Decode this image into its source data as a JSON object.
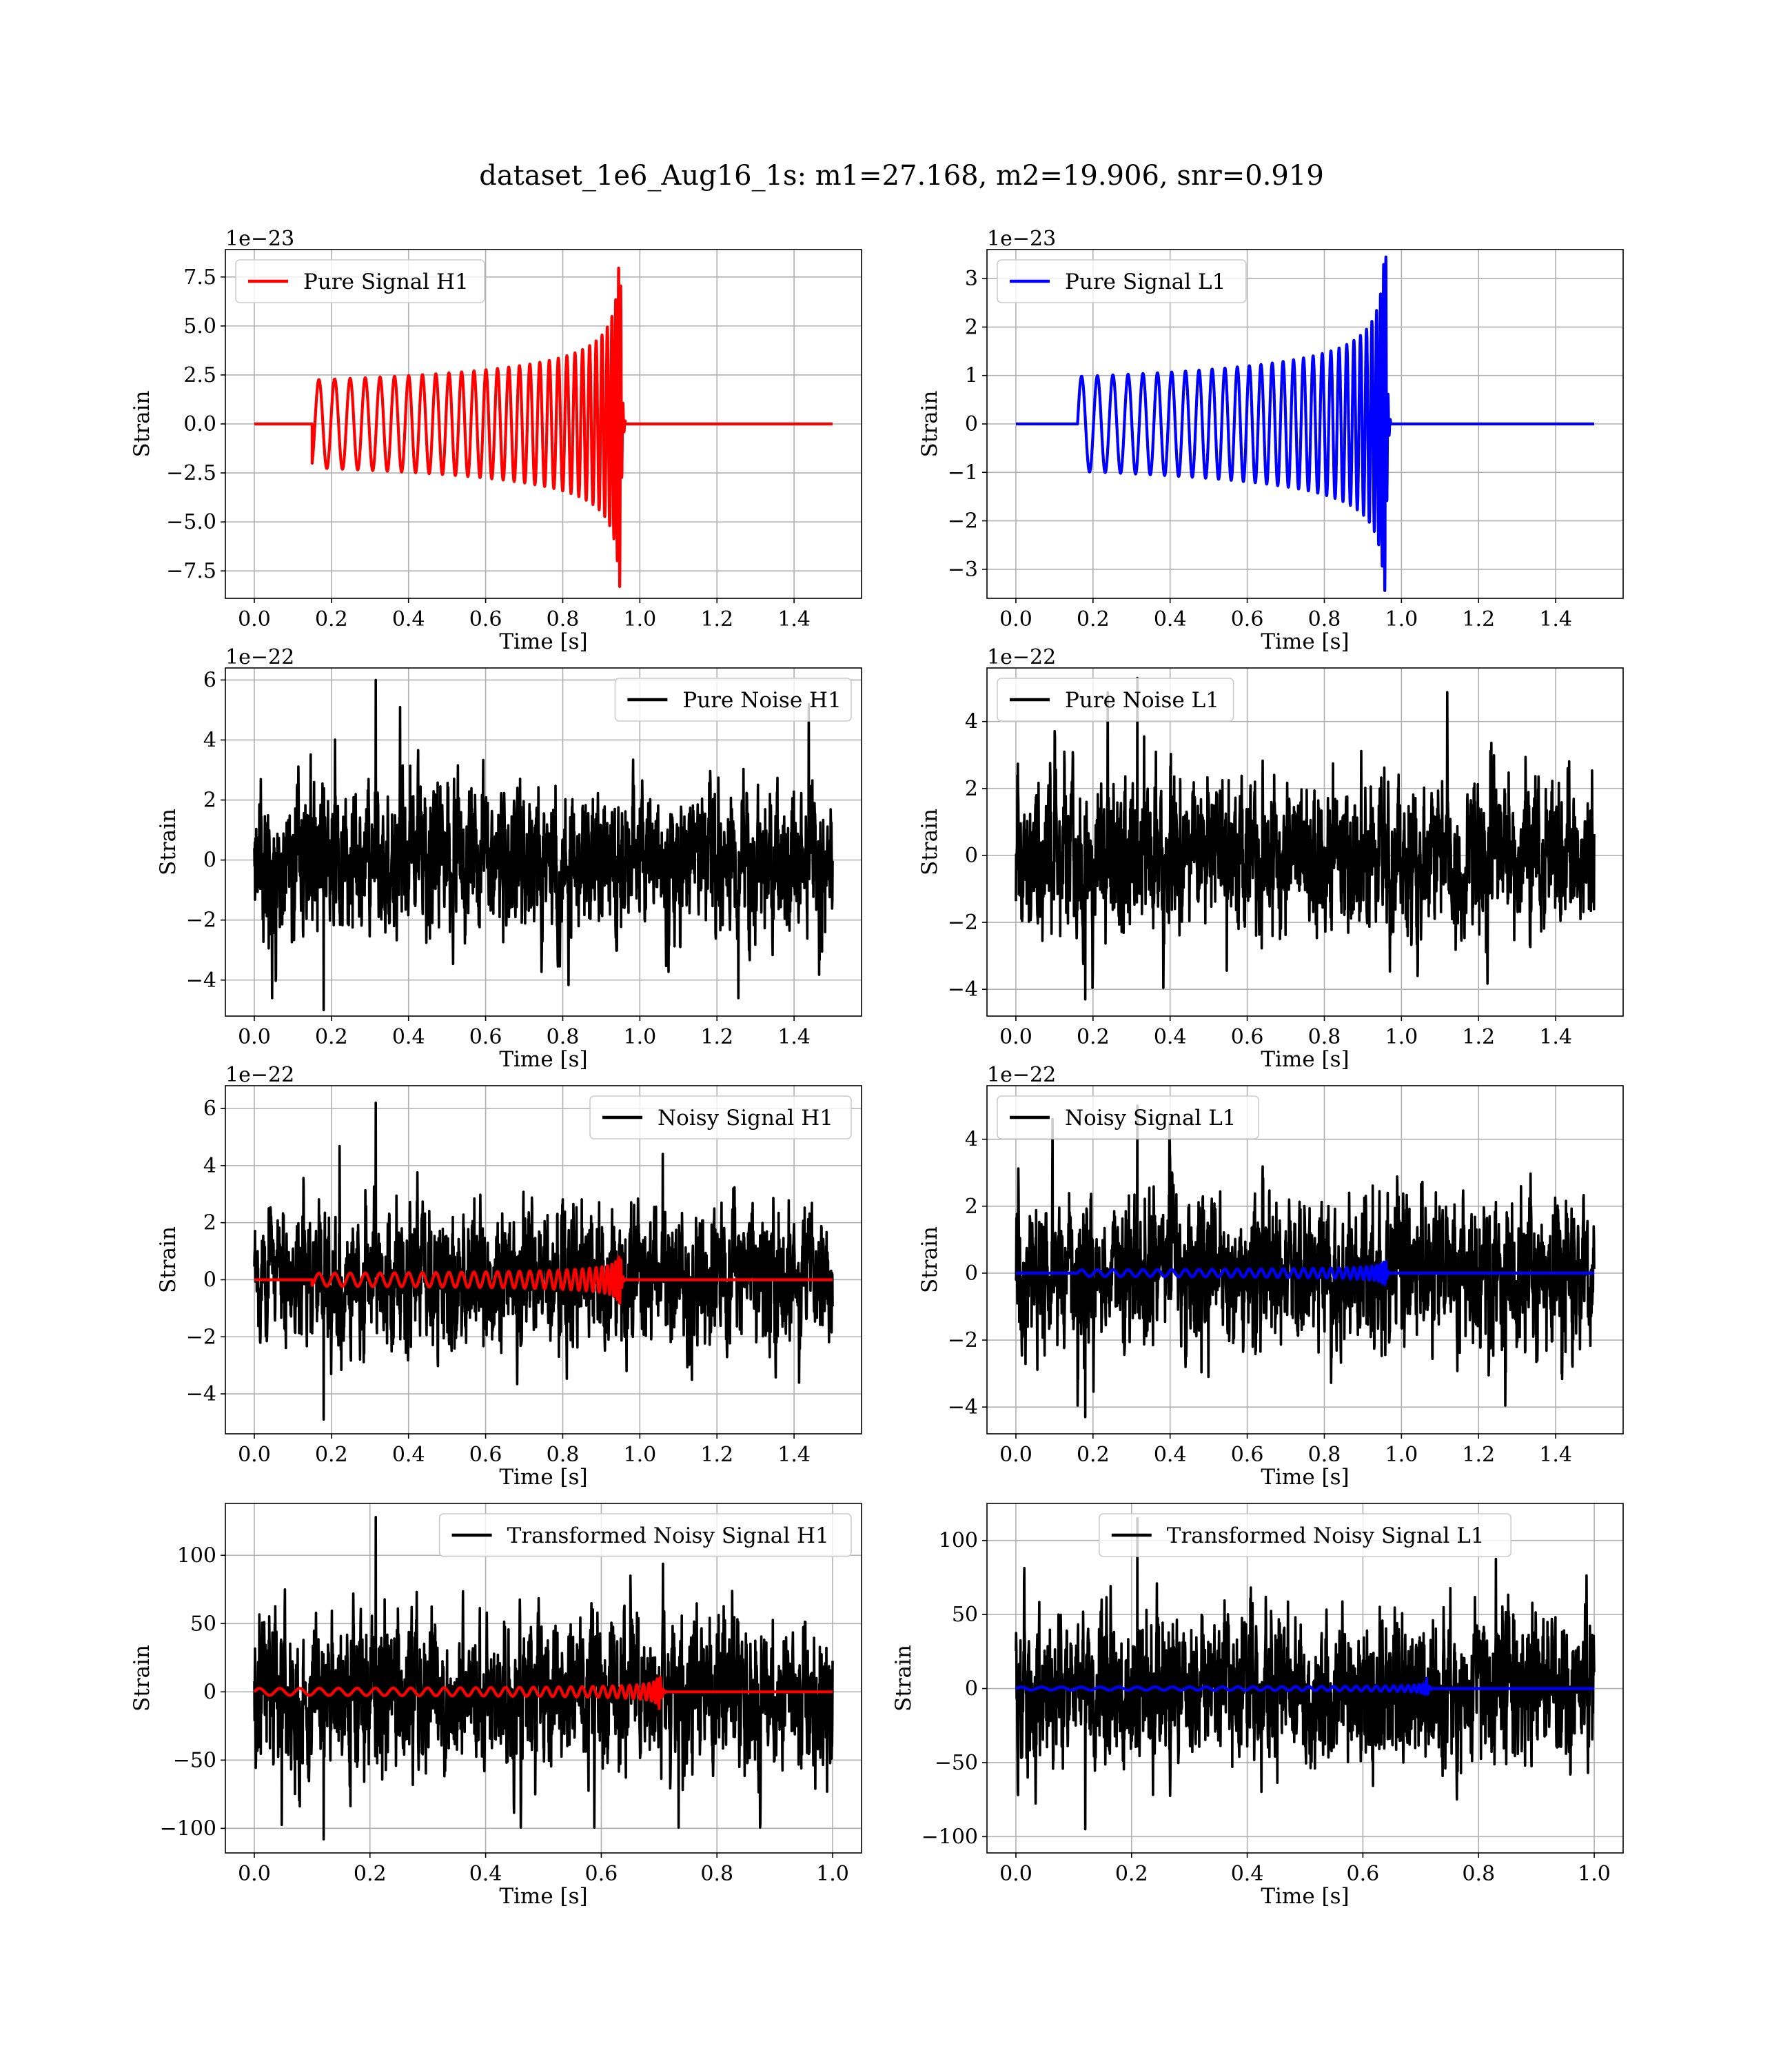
{
  "figure_title": "dataset_1e6_Aug16_1s: m1=27.168, m2=19.906, snr=0.919",
  "colors": {
    "h1": "#ff0000",
    "l1": "#0000ff",
    "noise": "#000000"
  },
  "chart_data": [
    {
      "type": "line",
      "title": "",
      "xlabel": "Time [s]",
      "ylabel": "Strain",
      "offset_text": "1e−23",
      "legend": [
        "Pure Signal H1"
      ],
      "legend_loc": "upper left",
      "xlim": [
        -0.075,
        1.575
      ],
      "ylim": [
        -8.9,
        8.9
      ],
      "xticks": [
        "0.0",
        "0.2",
        "0.4",
        "0.6",
        "0.8",
        "1.0",
        "1.2",
        "1.4"
      ],
      "xtick_values": [
        0,
        0.2,
        0.4,
        0.6,
        0.8,
        1.0,
        1.2,
        1.4
      ],
      "yticks": [
        "−7.5",
        "−5.0",
        "−2.5",
        "0.0",
        "2.5",
        "5.0",
        "7.5"
      ],
      "ytick_values": [
        -7.5,
        -5,
        -2.5,
        0,
        2.5,
        5,
        7.5
      ],
      "series": [
        {
          "name": "Pure Signal H1",
          "kind": "chirp",
          "color": "h1",
          "t_start": 0.15,
          "t_merge": 0.95,
          "t_end": 1.5,
          "amp_start": 2.25,
          "amp_peak": 8.3,
          "f_start": 24,
          "f_peak": 160,
          "initial": -2.0
        }
      ]
    },
    {
      "type": "line",
      "title": "",
      "xlabel": "Time [s]",
      "ylabel": "Strain",
      "offset_text": "1e−23",
      "legend": [
        "Pure Signal L1"
      ],
      "legend_loc": "upper left",
      "xlim": [
        -0.075,
        1.575
      ],
      "ylim": [
        -3.6,
        3.6
      ],
      "xticks": [
        "0.0",
        "0.2",
        "0.4",
        "0.6",
        "0.8",
        "1.0",
        "1.2",
        "1.4"
      ],
      "xtick_values": [
        0,
        0.2,
        0.4,
        0.6,
        0.8,
        1.0,
        1.2,
        1.4
      ],
      "yticks": [
        "−3",
        "−2",
        "−1",
        "0",
        "1",
        "2",
        "3"
      ],
      "ytick_values": [
        -3,
        -2,
        -1,
        0,
        1,
        2,
        3
      ],
      "series": [
        {
          "name": "Pure Signal L1",
          "kind": "chirp",
          "color": "l1",
          "t_start": 0.16,
          "t_merge": 0.96,
          "t_end": 1.5,
          "amp_start": 0.98,
          "amp_peak": 3.45,
          "f_start": 24,
          "f_peak": 160,
          "initial": 0.0
        }
      ]
    },
    {
      "type": "line",
      "title": "",
      "xlabel": "Time [s]",
      "ylabel": "Strain",
      "offset_text": "1e−22",
      "legend": [
        "Pure Noise H1"
      ],
      "legend_loc": "upper right",
      "xlim": [
        -0.075,
        1.575
      ],
      "ylim": [
        -5.2,
        6.4
      ],
      "xticks": [
        "0.0",
        "0.2",
        "0.4",
        "0.6",
        "0.8",
        "1.0",
        "1.2",
        "1.4"
      ],
      "xtick_values": [
        0,
        0.2,
        0.4,
        0.6,
        0.8,
        1.0,
        1.2,
        1.4
      ],
      "yticks": [
        "−4",
        "−2",
        "0",
        "2",
        "4",
        "6"
      ],
      "ytick_values": [
        -4,
        -2,
        0,
        2,
        4,
        6
      ],
      "series": [
        {
          "name": "Pure Noise H1",
          "kind": "noise",
          "color": "noise",
          "t_start": 0,
          "t_end": 1.5,
          "sigma": 1.15,
          "max": 6.0,
          "min": -5.0,
          "seed": 11
        }
      ]
    },
    {
      "type": "line",
      "title": "",
      "xlabel": "Time [s]",
      "ylabel": "Strain",
      "offset_text": "1e−22",
      "legend": [
        "Pure Noise L1"
      ],
      "legend_loc": "upper left",
      "xlim": [
        -0.075,
        1.575
      ],
      "ylim": [
        -4.8,
        5.6
      ],
      "xticks": [
        "0.0",
        "0.2",
        "0.4",
        "0.6",
        "0.8",
        "1.0",
        "1.2",
        "1.4"
      ],
      "xtick_values": [
        0,
        0.2,
        0.4,
        0.6,
        0.8,
        1.0,
        1.2,
        1.4
      ],
      "yticks": [
        "−4",
        "−2",
        "0",
        "2",
        "4"
      ],
      "ytick_values": [
        -4,
        -2,
        0,
        2,
        4
      ],
      "series": [
        {
          "name": "Pure Noise L1",
          "kind": "noise",
          "color": "noise",
          "t_start": 0,
          "t_end": 1.5,
          "sigma": 1.05,
          "max": 5.3,
          "min": -4.3,
          "seed": 23
        }
      ]
    },
    {
      "type": "line",
      "title": "",
      "xlabel": "Time [s]",
      "ylabel": "Strain",
      "offset_text": "1e−22",
      "legend": [
        "Noisy Signal H1"
      ],
      "legend_loc": "upper right",
      "xlim": [
        -0.075,
        1.575
      ],
      "ylim": [
        -5.4,
        6.8
      ],
      "xticks": [
        "0.0",
        "0.2",
        "0.4",
        "0.6",
        "0.8",
        "1.0",
        "1.2",
        "1.4"
      ],
      "xtick_values": [
        0,
        0.2,
        0.4,
        0.6,
        0.8,
        1.0,
        1.2,
        1.4
      ],
      "yticks": [
        "−4",
        "−2",
        "0",
        "2",
        "4",
        "6"
      ],
      "ytick_values": [
        -4,
        -2,
        0,
        2,
        4,
        6
      ],
      "series": [
        {
          "name": "Noisy Signal H1",
          "kind": "noise",
          "color": "noise",
          "t_start": 0,
          "t_end": 1.5,
          "sigma": 1.15,
          "max": 6.2,
          "min": -4.9,
          "seed": 37
        },
        {
          "name": "Pure Signal H1 (overlay)",
          "kind": "chirp",
          "color": "h1",
          "t_start": 0.15,
          "t_merge": 0.95,
          "t_end": 1.5,
          "amp_start": 0.225,
          "amp_peak": 0.83,
          "f_start": 24,
          "f_peak": 160,
          "initial": -0.2
        }
      ]
    },
    {
      "type": "line",
      "title": "",
      "xlabel": "Time [s]",
      "ylabel": "Strain",
      "offset_text": "1e−22",
      "legend": [
        "Noisy Signal L1"
      ],
      "legend_loc": "upper left",
      "xlim": [
        -0.075,
        1.575
      ],
      "ylim": [
        -4.8,
        5.6
      ],
      "xticks": [
        "0.0",
        "0.2",
        "0.4",
        "0.6",
        "0.8",
        "1.0",
        "1.2",
        "1.4"
      ],
      "xtick_values": [
        0,
        0.2,
        0.4,
        0.6,
        0.8,
        1.0,
        1.2,
        1.4
      ],
      "yticks": [
        "−4",
        "−2",
        "0",
        "2",
        "4"
      ],
      "ytick_values": [
        -4,
        -2,
        0,
        2,
        4
      ],
      "series": [
        {
          "name": "Noisy Signal L1",
          "kind": "noise",
          "color": "noise",
          "t_start": 0,
          "t_end": 1.5,
          "sigma": 1.05,
          "max": 5.0,
          "min": -4.3,
          "seed": 53
        },
        {
          "name": "Pure Signal L1 (overlay)",
          "kind": "chirp",
          "color": "l1",
          "t_start": 0.16,
          "t_merge": 0.96,
          "t_end": 1.5,
          "amp_start": 0.098,
          "amp_peak": 0.345,
          "f_start": 24,
          "f_peak": 160,
          "initial": 0.0
        }
      ]
    },
    {
      "type": "line",
      "title": "",
      "xlabel": "Time [s]",
      "ylabel": "Strain",
      "offset_text": "",
      "legend": [
        "Transformed Noisy Signal H1"
      ],
      "legend_loc": "upper right",
      "xlim": [
        -0.05,
        1.05
      ],
      "ylim": [
        -118,
        138
      ],
      "xticks": [
        "0.0",
        "0.2",
        "0.4",
        "0.6",
        "0.8",
        "1.0"
      ],
      "xtick_values": [
        0,
        0.2,
        0.4,
        0.6,
        0.8,
        1.0
      ],
      "yticks": [
        "−100",
        "−50",
        "0",
        "50",
        "100"
      ],
      "ytick_values": [
        -100,
        -50,
        0,
        50,
        100
      ],
      "series": [
        {
          "name": "Transformed Noisy Signal H1",
          "kind": "noise",
          "color": "noise",
          "t_start": 0,
          "t_end": 1.0,
          "sigma": 26,
          "max": 128,
          "min": -108,
          "seed": 71
        },
        {
          "name": "Pure Signal H1 (overlay)",
          "kind": "chirp",
          "color": "h1",
          "t_start": 0.0,
          "t_merge": 0.7,
          "t_end": 1.0,
          "amp_start": 2.5,
          "amp_peak": 20,
          "f_start": 28,
          "f_peak": 170,
          "initial": 0.0
        }
      ]
    },
    {
      "type": "line",
      "title": "",
      "xlabel": "Time [s]",
      "ylabel": "Strain",
      "offset_text": "",
      "legend": [
        "Transformed Noisy Signal L1"
      ],
      "legend_loc": "upper center",
      "xlim": [
        -0.05,
        1.05
      ],
      "ylim": [
        -111,
        125
      ],
      "xticks": [
        "0.0",
        "0.2",
        "0.4",
        "0.6",
        "0.8",
        "1.0"
      ],
      "xtick_values": [
        0,
        0.2,
        0.4,
        0.6,
        0.8,
        1.0
      ],
      "yticks": [
        "−100",
        "−50",
        "0",
        "50",
        "100"
      ],
      "ytick_values": [
        -100,
        -50,
        0,
        50,
        100
      ],
      "series": [
        {
          "name": "Transformed Noisy Signal L1",
          "kind": "noise",
          "color": "noise",
          "t_start": 0,
          "t_end": 1.0,
          "sigma": 24,
          "max": 115,
          "min": -95,
          "seed": 89
        },
        {
          "name": "Pure Signal L1 (overlay)",
          "kind": "chirp",
          "color": "l1",
          "t_start": 0.0,
          "t_merge": 0.71,
          "t_end": 1.0,
          "amp_start": 1.0,
          "amp_peak": 8,
          "f_start": 28,
          "f_peak": 170,
          "initial": 0.0
        }
      ]
    }
  ]
}
